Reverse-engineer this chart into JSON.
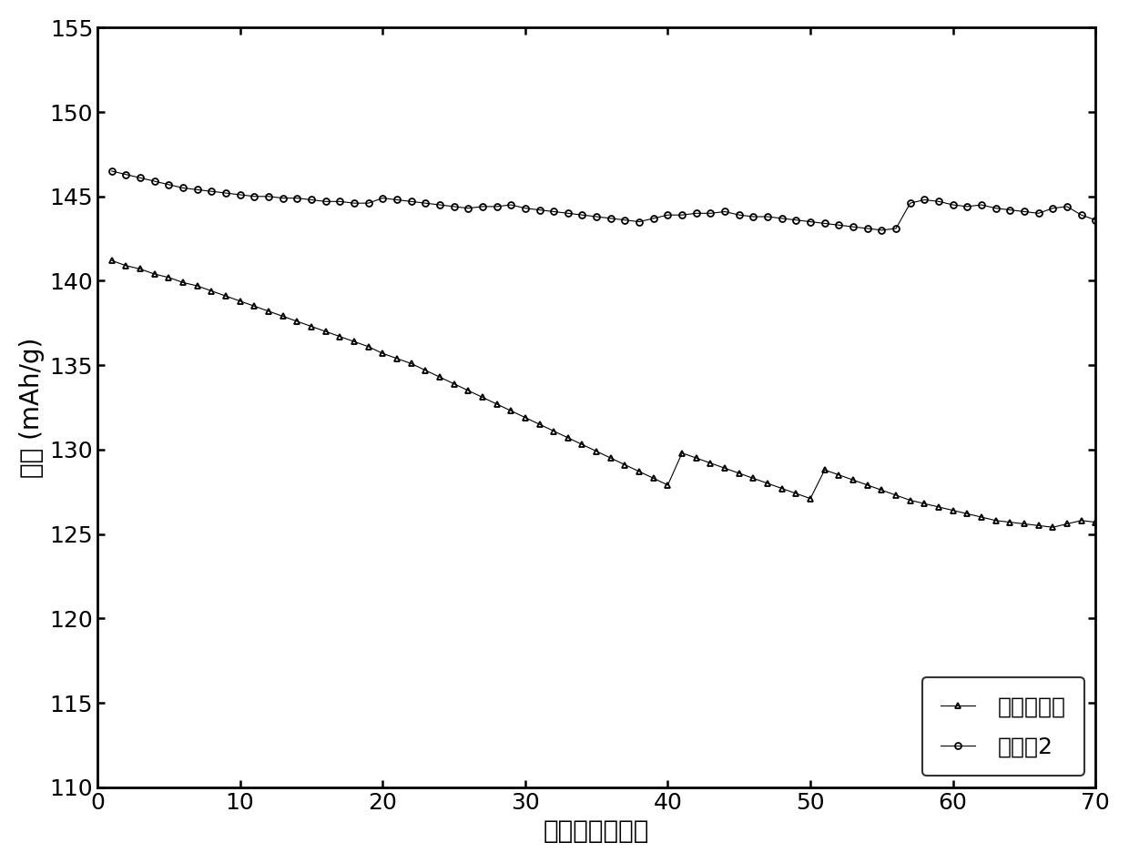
{
  "title": "",
  "xlabel": "循环次数（次）",
  "ylabel": "容量 (mAh/g)",
  "xlim": [
    0,
    70
  ],
  "ylim": [
    110,
    155
  ],
  "xticks": [
    0,
    10,
    20,
    30,
    40,
    50,
    60,
    70
  ],
  "yticks": [
    110,
    115,
    120,
    125,
    130,
    135,
    140,
    145,
    150,
    155
  ],
  "legend_labels": [
    "对比实施例",
    "实施例2"
  ],
  "legend_loc": "lower right",
  "series1_x": [
    1,
    2,
    3,
    4,
    5,
    6,
    7,
    8,
    9,
    10,
    11,
    12,
    13,
    14,
    15,
    16,
    17,
    18,
    19,
    20,
    21,
    22,
    23,
    24,
    25,
    26,
    27,
    28,
    29,
    30,
    31,
    32,
    33,
    34,
    35,
    36,
    37,
    38,
    39,
    40,
    41,
    42,
    43,
    44,
    45,
    46,
    47,
    48,
    49,
    50,
    51,
    52,
    53,
    54,
    55,
    56,
    57,
    58,
    59,
    60,
    61,
    62,
    63,
    64,
    65,
    66,
    67,
    68,
    69,
    70
  ],
  "series1_y": [
    141.2,
    140.9,
    140.7,
    140.4,
    140.2,
    139.9,
    139.7,
    139.4,
    139.1,
    138.8,
    138.5,
    138.2,
    137.9,
    137.6,
    137.3,
    137.0,
    136.7,
    136.4,
    136.1,
    135.7,
    135.4,
    135.1,
    134.7,
    134.3,
    133.9,
    133.5,
    133.1,
    132.7,
    132.3,
    131.9,
    131.5,
    131.1,
    130.7,
    130.3,
    129.9,
    129.5,
    129.1,
    128.7,
    128.3,
    127.9,
    129.8,
    129.5,
    129.2,
    128.9,
    128.6,
    128.3,
    128.0,
    127.7,
    127.4,
    127.1,
    128.8,
    128.5,
    128.2,
    127.9,
    127.6,
    127.3,
    127.0,
    126.8,
    126.6,
    126.4,
    126.2,
    126.0,
    125.8,
    125.7,
    125.6,
    125.5,
    125.4,
    125.6,
    125.8,
    125.7
  ],
  "series2_x": [
    1,
    2,
    3,
    4,
    5,
    6,
    7,
    8,
    9,
    10,
    11,
    12,
    13,
    14,
    15,
    16,
    17,
    18,
    19,
    20,
    21,
    22,
    23,
    24,
    25,
    26,
    27,
    28,
    29,
    30,
    31,
    32,
    33,
    34,
    35,
    36,
    37,
    38,
    39,
    40,
    41,
    42,
    43,
    44,
    45,
    46,
    47,
    48,
    49,
    50,
    51,
    52,
    53,
    54,
    55,
    56,
    57,
    58,
    59,
    60,
    61,
    62,
    63,
    64,
    65,
    66,
    67,
    68,
    69,
    70
  ],
  "series2_y": [
    146.5,
    146.3,
    146.1,
    145.9,
    145.7,
    145.5,
    145.4,
    145.3,
    145.2,
    145.1,
    145.0,
    145.0,
    144.9,
    144.9,
    144.8,
    144.7,
    144.7,
    144.6,
    144.6,
    144.9,
    144.8,
    144.7,
    144.6,
    144.5,
    144.4,
    144.3,
    144.4,
    144.4,
    144.5,
    144.3,
    144.2,
    144.1,
    144.0,
    143.9,
    143.8,
    143.7,
    143.6,
    143.5,
    143.7,
    143.9,
    143.9,
    144.0,
    144.0,
    144.1,
    143.9,
    143.8,
    143.8,
    143.7,
    143.6,
    143.5,
    143.4,
    143.3,
    143.2,
    143.1,
    143.0,
    143.1,
    144.6,
    144.8,
    144.7,
    144.5,
    144.4,
    144.5,
    144.3,
    144.2,
    144.1,
    144.0,
    144.3,
    144.4,
    143.9,
    143.6
  ],
  "line_color": "#000000",
  "marker1": "^",
  "marker2": "o",
  "markersize": 5,
  "linewidth": 0.8,
  "fontsize_label": 20,
  "fontsize_tick": 18,
  "fontsize_legend": 18,
  "bg_color": "#ffffff",
  "spine_linewidth": 2.0
}
